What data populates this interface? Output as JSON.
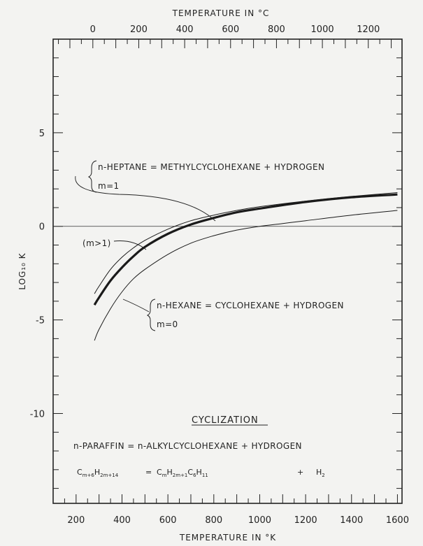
{
  "chart_data": {
    "type": "line",
    "title": "",
    "xlabel": "TEMPERATURE IN °K",
    "x2label": "TEMPERATURE IN °C",
    "ylabel": "LOG₁₀ K",
    "xlim": [
      100,
      1620
    ],
    "ylim": [
      -14.8,
      10
    ],
    "x_ticks": [
      200,
      400,
      600,
      800,
      1000,
      1200,
      1400,
      1600
    ],
    "x_tick_labels": [
      "200",
      "400",
      "600",
      "800",
      "1000",
      "1200",
      "1400",
      "1600"
    ],
    "x2_ticks": [
      0,
      200,
      400,
      600,
      800,
      1000,
      1200
    ],
    "x2_tick_labels": [
      "0",
      "200",
      "400",
      "600",
      "800",
      "1000",
      "1200"
    ],
    "y_ticks": [
      5,
      0,
      -5,
      -10
    ],
    "y_tick_labels": [
      "5",
      "0",
      "-5",
      "-10"
    ],
    "grid": false,
    "series": [
      {
        "name": "",
        "style": "thin",
        "x": [
          280,
          300,
          350,
          400,
          450,
          500,
          600,
          700,
          800,
          900,
          1000,
          1200,
          1400,
          1600
        ],
        "y": [
          -3.6,
          -3.2,
          -2.3,
          -1.65,
          -1.15,
          -0.75,
          -0.15,
          0.3,
          0.6,
          0.85,
          1.05,
          1.35,
          1.6,
          1.8
        ]
      },
      {
        "name": "",
        "style": "thick",
        "x": [
          280,
          300,
          350,
          400,
          450,
          500,
          600,
          700,
          800,
          900,
          1000,
          1200,
          1400,
          1600
        ],
        "y": [
          -4.2,
          -3.8,
          -2.9,
          -2.2,
          -1.6,
          -1.1,
          -0.4,
          0.1,
          0.45,
          0.75,
          0.95,
          1.3,
          1.55,
          1.7
        ]
      },
      {
        "name": "",
        "style": "thin",
        "x": [
          280,
          300,
          350,
          400,
          450,
          500,
          600,
          700,
          800,
          900,
          1000,
          1100,
          1200,
          1400,
          1600
        ],
        "y": [
          -6.1,
          -5.5,
          -4.4,
          -3.5,
          -2.8,
          -2.3,
          -1.5,
          -0.9,
          -0.5,
          -0.2,
          0.0,
          0.15,
          0.3,
          0.6,
          0.85
        ]
      }
    ],
    "annotations": {
      "heptane_eq": "n-HEPTANE = METHYLCYCLOHEXANE + HYDROGEN",
      "heptane_m": "m=1",
      "m_gt_1": "(m>1)",
      "hexane_eq": "n-HEXANE = CYCLOHEXANE + HYDROGEN",
      "hexane_m": "m=0",
      "cyclization": "CYCLIZATION",
      "general_eq": "n-PARAFFIN = n-ALKYLCYCLOHEXANE + HYDROGEN",
      "formula_lhs_base": "C",
      "formula_lhs_sub1": "m+6",
      "formula_lhs_mid": "H",
      "formula_lhs_sub2": "2m+14",
      "formula_eq": "=",
      "formula_rhs_c1": "C",
      "formula_rhs_sub1": "m",
      "formula_rhs_h1": "H",
      "formula_rhs_sub2": "2m+1",
      "formula_rhs_c2": "C",
      "formula_rhs_sub3": "6",
      "formula_rhs_h2": "H",
      "formula_rhs_sub4": "11",
      "formula_plus": "+",
      "formula_h2": "H",
      "formula_h2_sub": "2"
    }
  }
}
